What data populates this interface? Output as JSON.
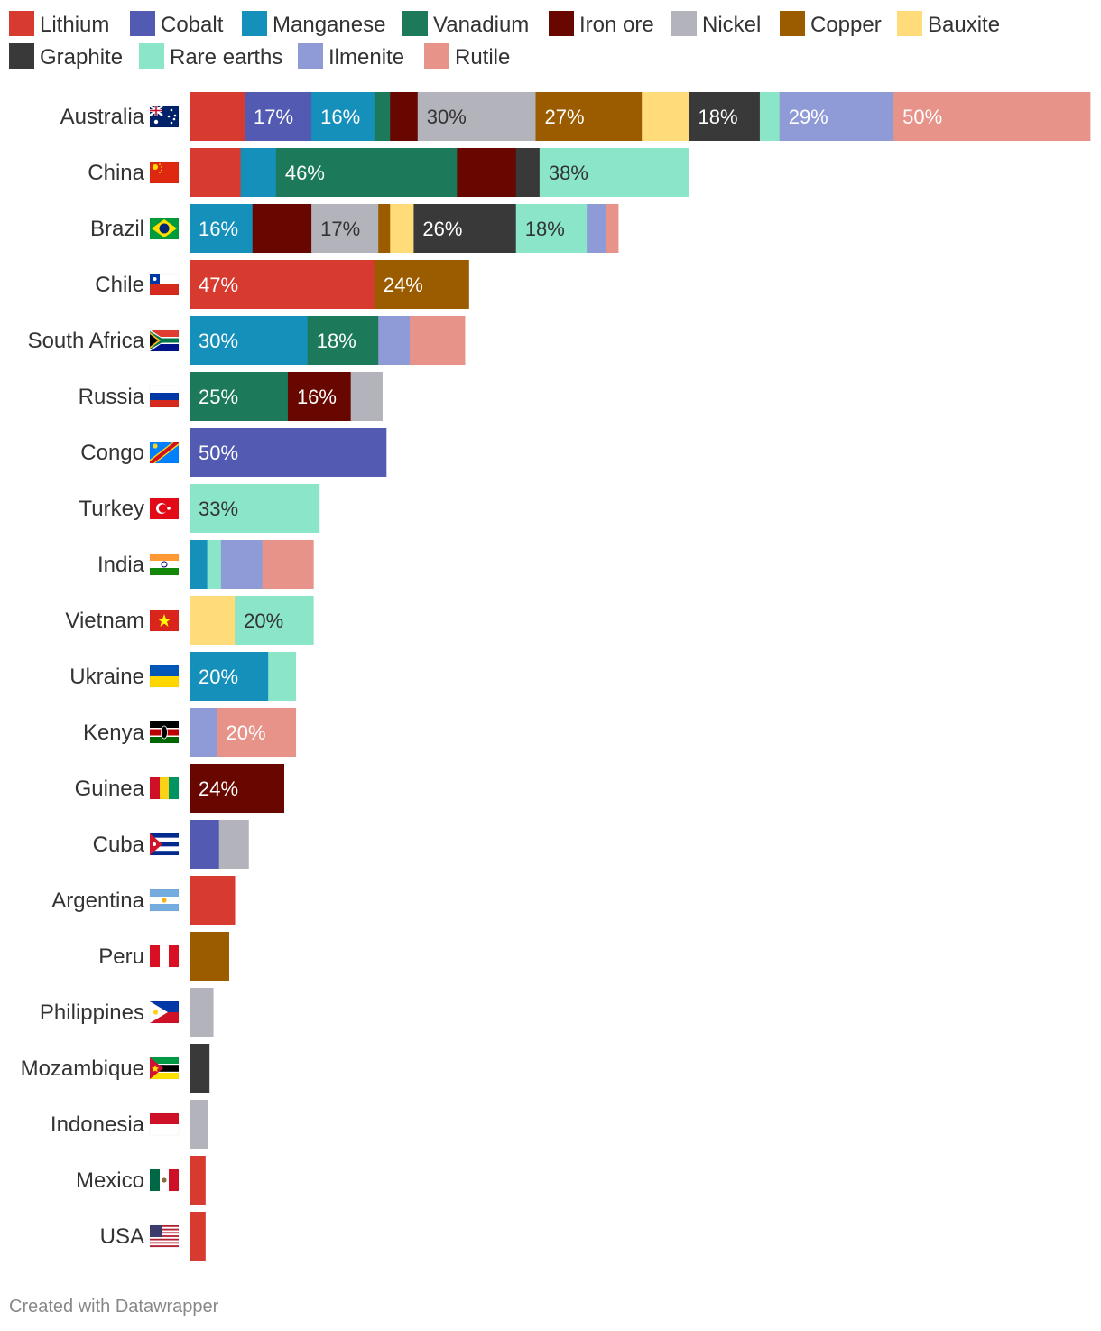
{
  "chart_data": {
    "type": "bar",
    "orientation": "horizontal",
    "stacked": true,
    "unit": "% of world production",
    "legend_position": "top",
    "series": [
      {
        "name": "Lithium",
        "color": "#d73a2f"
      },
      {
        "name": "Cobalt",
        "color": "#525bb1"
      },
      {
        "name": "Manganese",
        "color": "#1590bb"
      },
      {
        "name": "Vanadium",
        "color": "#1c7a5a"
      },
      {
        "name": "Iron ore",
        "color": "#680600"
      },
      {
        "name": "Nickel",
        "color": "#b3b3bb"
      },
      {
        "name": "Copper",
        "color": "#9b5c00"
      },
      {
        "name": "Bauxite",
        "color": "#ffdb79"
      },
      {
        "name": "Graphite",
        "color": "#393939"
      },
      {
        "name": "Rare earths",
        "color": "#8be5c9"
      },
      {
        "name": "Ilmenite",
        "color": "#8f9bd6"
      },
      {
        "name": "Rutile",
        "color": "#e8938a"
      }
    ],
    "rows": [
      {
        "country": "Australia",
        "flag": "au",
        "segments": [
          {
            "mineral": "Lithium",
            "value": 14
          },
          {
            "mineral": "Cobalt",
            "value": 17,
            "label": "17%"
          },
          {
            "mineral": "Manganese",
            "value": 16,
            "label": "16%"
          },
          {
            "mineral": "Vanadium",
            "value": 4
          },
          {
            "mineral": "Iron ore",
            "value": 7
          },
          {
            "mineral": "Nickel",
            "value": 30,
            "label": "30%"
          },
          {
            "mineral": "Copper",
            "value": 27,
            "label": "27%"
          },
          {
            "mineral": "Bauxite",
            "value": 12
          },
          {
            "mineral": "Graphite",
            "value": 18,
            "label": "18%"
          },
          {
            "mineral": "Rare earths",
            "value": 5
          },
          {
            "mineral": "Ilmenite",
            "value": 29,
            "label": "29%"
          },
          {
            "mineral": "Rutile",
            "value": 50,
            "label": "50%"
          }
        ]
      },
      {
        "country": "China",
        "flag": "cn",
        "segments": [
          {
            "mineral": "Lithium",
            "value": 13
          },
          {
            "mineral": "Manganese",
            "value": 9
          },
          {
            "mineral": "Vanadium",
            "value": 46,
            "label": "46%"
          },
          {
            "mineral": "Iron ore",
            "value": 15
          },
          {
            "mineral": "Graphite",
            "value": 6
          },
          {
            "mineral": "Rare earths",
            "value": 38,
            "label": "38%"
          }
        ]
      },
      {
        "country": "Brazil",
        "flag": "br",
        "segments": [
          {
            "mineral": "Manganese",
            "value": 16,
            "label": "16%"
          },
          {
            "mineral": "Iron ore",
            "value": 15
          },
          {
            "mineral": "Nickel",
            "value": 17,
            "label": "17%"
          },
          {
            "mineral": "Copper",
            "value": 3
          },
          {
            "mineral": "Bauxite",
            "value": 6
          },
          {
            "mineral": "Graphite",
            "value": 26,
            "label": "26%"
          },
          {
            "mineral": "Rare earths",
            "value": 18,
            "label": "18%"
          },
          {
            "mineral": "Ilmenite",
            "value": 5
          },
          {
            "mineral": "Rutile",
            "value": 3
          }
        ]
      },
      {
        "country": "Chile",
        "flag": "cl",
        "segments": [
          {
            "mineral": "Lithium",
            "value": 47,
            "label": "47%"
          },
          {
            "mineral": "Copper",
            "value": 24,
            "label": "24%"
          }
        ]
      },
      {
        "country": "South Africa",
        "flag": "za",
        "segments": [
          {
            "mineral": "Manganese",
            "value": 30,
            "label": "30%"
          },
          {
            "mineral": "Vanadium",
            "value": 18,
            "label": "18%"
          },
          {
            "mineral": "Ilmenite",
            "value": 8
          },
          {
            "mineral": "Rutile",
            "value": 14
          }
        ]
      },
      {
        "country": "Russia",
        "flag": "ru",
        "segments": [
          {
            "mineral": "Vanadium",
            "value": 25,
            "label": "25%"
          },
          {
            "mineral": "Iron ore",
            "value": 16,
            "label": "16%"
          },
          {
            "mineral": "Nickel",
            "value": 8
          }
        ]
      },
      {
        "country": "Congo",
        "flag": "cd",
        "segments": [
          {
            "mineral": "Cobalt",
            "value": 50,
            "label": "50%"
          }
        ]
      },
      {
        "country": "Turkey",
        "flag": "tr",
        "segments": [
          {
            "mineral": "Rare earths",
            "value": 33,
            "label": "33%"
          }
        ]
      },
      {
        "country": "India",
        "flag": "in",
        "segments": [
          {
            "mineral": "Manganese",
            "value": 4.5
          },
          {
            "mineral": "Rare earths",
            "value": 3.5
          },
          {
            "mineral": "Ilmenite",
            "value": 10.5
          },
          {
            "mineral": "Rutile",
            "value": 13
          }
        ]
      },
      {
        "country": "Vietnam",
        "flag": "vn",
        "segments": [
          {
            "mineral": "Bauxite",
            "value": 11.5
          },
          {
            "mineral": "Rare earths",
            "value": 20,
            "label": "20%"
          }
        ]
      },
      {
        "country": "Ukraine",
        "flag": "ua",
        "segments": [
          {
            "mineral": "Manganese",
            "value": 20,
            "label": "20%"
          },
          {
            "mineral": "Rare earths",
            "value": 7
          }
        ]
      },
      {
        "country": "Kenya",
        "flag": "ke",
        "segments": [
          {
            "mineral": "Ilmenite",
            "value": 7
          },
          {
            "mineral": "Rutile",
            "value": 20,
            "label": "20%"
          }
        ]
      },
      {
        "country": "Guinea",
        "flag": "gn",
        "segments": [
          {
            "mineral": "Iron ore",
            "value": 24,
            "label": "24%"
          }
        ]
      },
      {
        "country": "Cuba",
        "flag": "cu",
        "segments": [
          {
            "mineral": "Cobalt",
            "value": 7.5
          },
          {
            "mineral": "Nickel",
            "value": 7.5
          }
        ]
      },
      {
        "country": "Argentina",
        "flag": "ar",
        "segments": [
          {
            "mineral": "Lithium",
            "value": 11.5
          }
        ]
      },
      {
        "country": "Peru",
        "flag": "pe",
        "segments": [
          {
            "mineral": "Copper",
            "value": 10
          }
        ]
      },
      {
        "country": "Philippines",
        "flag": "ph",
        "segments": [
          {
            "mineral": "Nickel",
            "value": 6
          }
        ]
      },
      {
        "country": "Mozambique",
        "flag": "mz",
        "segments": [
          {
            "mineral": "Graphite",
            "value": 5
          }
        ]
      },
      {
        "country": "Indonesia",
        "flag": "id",
        "segments": [
          {
            "mineral": "Nickel",
            "value": 4.5
          }
        ]
      },
      {
        "country": "Mexico",
        "flag": "mx",
        "segments": [
          {
            "mineral": "Lithium",
            "value": 4
          }
        ]
      },
      {
        "country": "USA",
        "flag": "us",
        "segments": [
          {
            "mineral": "Lithium",
            "value": 4
          }
        ]
      }
    ]
  },
  "credit": "Created with Datawrapper"
}
